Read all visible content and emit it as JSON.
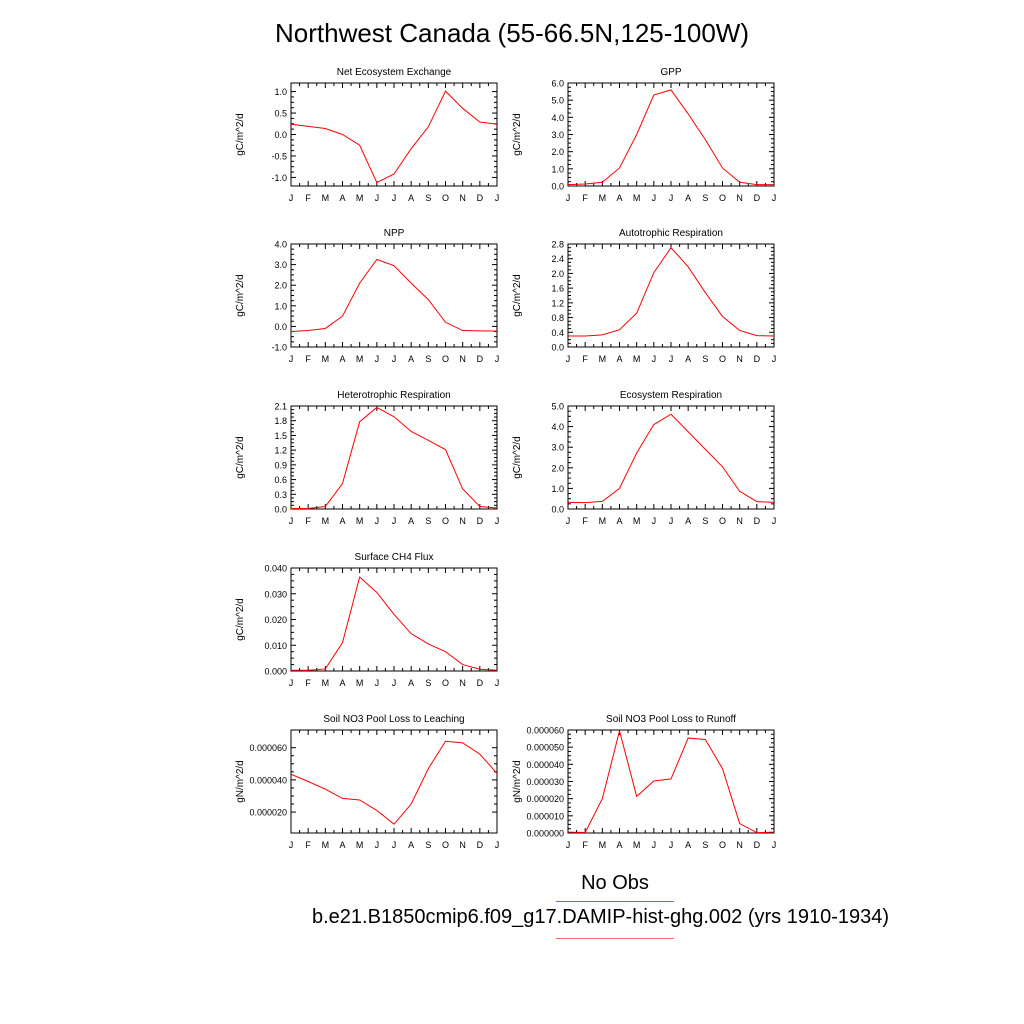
{
  "page": {
    "title": "Northwest Canada (55-66.5N,125-100W)"
  },
  "legend": {
    "obs_label": "No Obs",
    "obs_color": "#6666ff",
    "case_label": "b.e21.B1850cmip6.f09_g17.DAMIP-hist-ghg.002 (yrs 1910-1934)",
    "case_color": "#ff6666"
  },
  "chart_data": [
    {
      "type": "line",
      "title": "Net Ecosystem Exchange",
      "ylabel": "gC/m^2/d",
      "categories": [
        "J",
        "F",
        "M",
        "A",
        "M",
        "J",
        "J",
        "A",
        "S",
        "O",
        "N",
        "D",
        "J"
      ],
      "values": [
        0.24,
        0.19,
        0.14,
        0.0,
        -0.25,
        -1.12,
        -0.92,
        -0.33,
        0.18,
        1.01,
        0.61,
        0.29,
        0.24
      ],
      "ylim": [
        -1.2,
        1.2
      ],
      "yticks": [
        -1.0,
        -0.5,
        0.0,
        0.5,
        1.0
      ],
      "ytick_labels": [
        "-1.0",
        "-0.5",
        "0.0",
        "0.5",
        "1.0"
      ],
      "line_color": "#ff0000"
    },
    {
      "type": "line",
      "title": "GPP",
      "ylabel": "gC/m^2/d",
      "categories": [
        "J",
        "F",
        "M",
        "A",
        "M",
        "J",
        "J",
        "A",
        "S",
        "O",
        "N",
        "D",
        "J"
      ],
      "values": [
        0.08,
        0.12,
        0.22,
        1.05,
        3.0,
        5.3,
        5.6,
        4.2,
        2.7,
        1.05,
        0.22,
        0.08,
        0.08
      ],
      "ylim": [
        0.0,
        6.0
      ],
      "yticks": [
        0.0,
        1.0,
        2.0,
        3.0,
        4.0,
        5.0,
        6.0
      ],
      "ytick_labels": [
        "0.0",
        "1.0",
        "2.0",
        "3.0",
        "4.0",
        "5.0",
        "6.0"
      ],
      "line_color": "#ff0000"
    },
    {
      "type": "line",
      "title": "NPP",
      "ylabel": "gC/m^2/d",
      "categories": [
        "J",
        "F",
        "M",
        "A",
        "M",
        "J",
        "J",
        "A",
        "S",
        "O",
        "N",
        "D",
        "J"
      ],
      "values": [
        -0.25,
        -0.2,
        -0.1,
        0.5,
        2.1,
        3.25,
        2.95,
        2.1,
        1.3,
        0.2,
        -0.2,
        -0.22,
        -0.23
      ],
      "ylim": [
        -1.0,
        4.0
      ],
      "yticks": [
        -1.0,
        0.0,
        1.0,
        2.0,
        3.0,
        4.0
      ],
      "ytick_labels": [
        "-1.0",
        "0.0",
        "1.0",
        "2.0",
        "3.0",
        "4.0"
      ],
      "line_color": "#ff0000"
    },
    {
      "type": "line",
      "title": "Autotrophic Respiration",
      "ylabel": "gC/m^2/d",
      "categories": [
        "J",
        "F",
        "M",
        "A",
        "M",
        "J",
        "J",
        "A",
        "S",
        "O",
        "N",
        "D",
        "J"
      ],
      "values": [
        0.3,
        0.3,
        0.33,
        0.47,
        0.92,
        2.02,
        2.7,
        2.18,
        1.48,
        0.83,
        0.45,
        0.31,
        0.3
      ],
      "ylim": [
        0.0,
        2.8
      ],
      "yticks": [
        0.0,
        0.4,
        0.8,
        1.2,
        1.6,
        2.0,
        2.4,
        2.8
      ],
      "ytick_labels": [
        "0.0",
        "0.4",
        "0.8",
        "1.2",
        "1.6",
        "2.0",
        "2.4",
        "2.8"
      ],
      "line_color": "#ff0000"
    },
    {
      "type": "line",
      "title": "Heterotrophic Respiration",
      "ylabel": "gC/m^2/d",
      "categories": [
        "J",
        "F",
        "M",
        "A",
        "M",
        "J",
        "J",
        "A",
        "S",
        "O",
        "N",
        "D",
        "J"
      ],
      "values": [
        0.01,
        0.01,
        0.05,
        0.52,
        1.78,
        2.07,
        1.88,
        1.58,
        1.4,
        1.21,
        0.41,
        0.05,
        0.02
      ],
      "ylim": [
        0.0,
        2.1
      ],
      "yticks": [
        0.0,
        0.3,
        0.6,
        0.9,
        1.2,
        1.5,
        1.8,
        2.1
      ],
      "ytick_labels": [
        "0.0",
        "0.3",
        "0.6",
        "0.9",
        "1.2",
        "1.5",
        "1.8",
        "2.1"
      ],
      "line_color": "#ff0000"
    },
    {
      "type": "line",
      "title": "Ecosystem Respiration",
      "ylabel": "gC/m^2/d",
      "categories": [
        "J",
        "F",
        "M",
        "A",
        "M",
        "J",
        "J",
        "A",
        "S",
        "O",
        "N",
        "D",
        "J"
      ],
      "values": [
        0.32,
        0.31,
        0.37,
        1.0,
        2.72,
        4.1,
        4.6,
        3.75,
        2.9,
        2.05,
        0.86,
        0.36,
        0.32
      ],
      "ylim": [
        0.0,
        5.0
      ],
      "yticks": [
        0.0,
        1.0,
        2.0,
        3.0,
        4.0,
        5.0
      ],
      "ytick_labels": [
        "0.0",
        "1.0",
        "2.0",
        "3.0",
        "4.0",
        "5.0"
      ],
      "line_color": "#ff0000"
    },
    {
      "type": "line",
      "title": "Surface CH4 Flux",
      "ylabel": "gC/m^2/d",
      "categories": [
        "J",
        "F",
        "M",
        "A",
        "M",
        "J",
        "J",
        "A",
        "S",
        "O",
        "N",
        "D",
        "J"
      ],
      "values": [
        0.0003,
        0.0003,
        0.0008,
        0.011,
        0.0365,
        0.0305,
        0.022,
        0.0145,
        0.0105,
        0.0075,
        0.0025,
        0.0007,
        0.0003
      ],
      "ylim": [
        0.0,
        0.04
      ],
      "yticks": [
        0.0,
        0.01,
        0.02,
        0.03,
        0.04
      ],
      "ytick_labels": [
        "0.000",
        "0.010",
        "0.020",
        "0.030",
        "0.040"
      ],
      "line_color": "#ff0000"
    },
    {
      "type": "line",
      "title": "Soil NO3 Pool Loss to Leaching",
      "ylabel": "gN/m^2/d",
      "categories": [
        "J",
        "F",
        "M",
        "A",
        "M",
        "J",
        "J",
        "A",
        "S",
        "O",
        "N",
        "D",
        "J"
      ],
      "values": [
        4.35e-05,
        3.9e-05,
        3.42e-05,
        2.85e-05,
        2.75e-05,
        2.1e-05,
        1.25e-05,
        2.5e-05,
        4.7e-05,
        6.4e-05,
        6.3e-05,
        5.6e-05,
        4.4e-05
      ],
      "ylim": [
        7e-06,
        7.1e-05
      ],
      "yticks": [
        2e-05,
        4e-05,
        6e-05
      ],
      "ytick_labels": [
        "0.000020",
        "0.000040",
        "0.000060"
      ],
      "line_color": "#ff0000"
    },
    {
      "type": "line",
      "title": "Soil NO3 Pool Loss to Runoff",
      "ylabel": "gN/m^2/d",
      "categories": [
        "J",
        "F",
        "M",
        "A",
        "M",
        "J",
        "J",
        "A",
        "S",
        "O",
        "N",
        "D",
        "J"
      ],
      "values": [
        5e-07,
        3e-07,
        2e-05,
        5.95e-05,
        2.13e-05,
        3.03e-05,
        3.15e-05,
        5.53e-05,
        5.45e-05,
        3.75e-05,
        5.5e-06,
        2e-07,
        5e-07
      ],
      "ylim": [
        0.0,
        6e-05
      ],
      "yticks": [
        0.0,
        1e-05,
        2e-05,
        3e-05,
        4e-05,
        5e-05,
        6e-05
      ],
      "ytick_labels": [
        "0.000000",
        "0.000010",
        "0.000020",
        "0.000030",
        "0.000040",
        "0.000050",
        "0.000060"
      ],
      "line_color": "#ff0000"
    }
  ]
}
